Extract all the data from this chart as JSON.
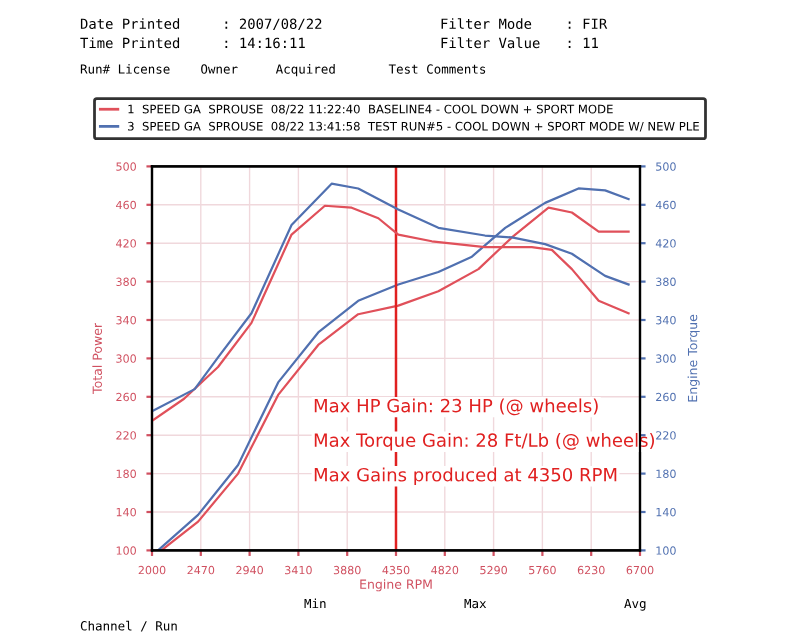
{
  "chart_data": {
    "type": "line",
    "xlabel": "Engine RPM",
    "ylabel": "Total Power",
    "y2label": "Engine Torque",
    "xlim": [
      2000,
      6700
    ],
    "xticks": [
      2000,
      2470,
      2940,
      3410,
      3880,
      4350,
      4820,
      5290,
      5760,
      6230,
      6700
    ],
    "ylim": [
      100,
      500
    ],
    "yticks": [
      100,
      140,
      180,
      220,
      260,
      300,
      340,
      380,
      420,
      460,
      500
    ],
    "y2lim": [
      100,
      500
    ],
    "y2ticks": [
      100,
      140,
      180,
      220,
      260,
      300,
      340,
      380,
      420,
      460,
      500
    ],
    "grid": true,
    "legend": "top",
    "marker": "none",
    "line_style": "solid",
    "series": [
      {
        "name": "1  SPEED GA  SPROUSE  08/22 11:22:40  BASELINE4 - COOL DOWN + SPORT MODE",
        "color": "#e0505a",
        "axis": "y2",
        "x": [
          2000,
          2309,
          2636,
          2958,
          3344,
          3665,
          3923,
          4180,
          4372,
          4695,
          5207,
          5658,
          5851,
          6044,
          6302,
          6590
        ],
        "values": [
          235,
          258,
          291,
          337,
          429,
          459,
          457,
          446,
          429,
          422,
          416,
          416,
          413,
          393,
          360,
          347
        ]
      },
      {
        "name": "3  SPEED GA  SPROUSE  08/22 13:41:58  TEST RUN#5 - COOL DOWN + SPORT MODE W/ NEW PLE",
        "color": "#5070b0",
        "axis": "y2",
        "x": [
          2000,
          2411,
          2636,
          2958,
          3344,
          3730,
          3986,
          4372,
          4758,
          5207,
          5466,
          5786,
          6044,
          6364,
          6590
        ],
        "values": [
          245,
          268,
          301,
          347,
          439,
          482,
          477,
          455,
          436,
          428,
          426,
          419,
          409,
          386,
          377
        ]
      },
      {
        "color": "#e0505a",
        "x": [
          2090,
          2444,
          2829,
          3215,
          3601,
          3986,
          4372,
          4758,
          5144,
          5466,
          5819,
          6044,
          6302,
          6590
        ],
        "values": [
          100,
          130,
          180,
          262,
          314,
          346,
          355,
          370,
          393,
          426,
          457,
          452,
          432,
          432
        ]
      },
      {
        "color": "#5070b0",
        "x": [
          2058,
          2444,
          2829,
          3215,
          3601,
          3986,
          4372,
          4758,
          5081,
          5402,
          5786,
          6108,
          6364,
          6590
        ],
        "values": [
          100,
          137,
          189,
          275,
          327,
          360,
          377,
          390,
          406,
          436,
          462,
          477,
          475,
          466
        ]
      }
    ],
    "ref_lines": [
      {
        "axis": "x",
        "value": 4350,
        "color": "#e02020"
      }
    ],
    "annotations": [
      "Max HP Gain: 23 HP (@ wheels)",
      "Max Torque Gain: 28 Ft/Lb (@ wheels)",
      "Max Gains produced at 4350 RPM",
      "Date Printed     : 2007/08/22",
      "Time Printed     : 14:16:11",
      "Filter Mode    : FIR",
      "Filter Value   : 11",
      "Run# License    Owner     Acquired       Test Comments",
      "Min",
      "Max",
      "Avg",
      "Channel / Run"
    ]
  }
}
